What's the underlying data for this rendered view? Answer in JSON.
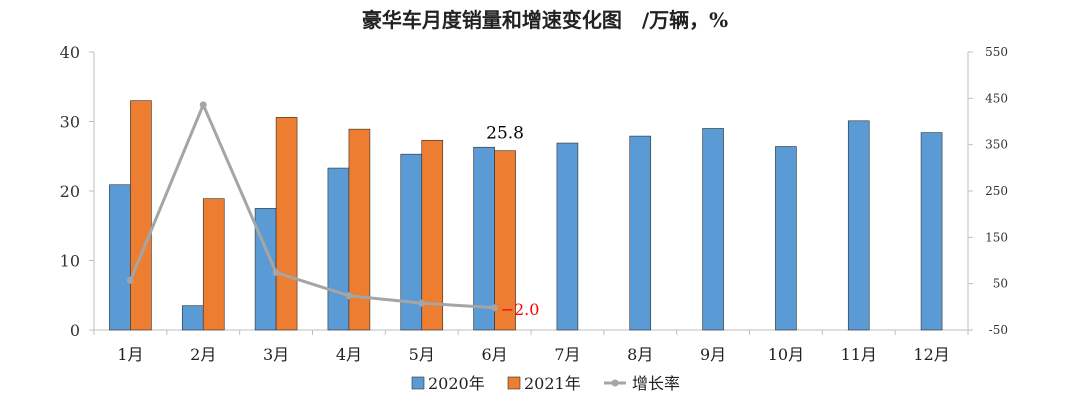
{
  "chart_data": {
    "type": "bar",
    "title": "豪华车月度销量和增速变化图　/万辆，%",
    "categories": [
      "1月",
      "2月",
      "3月",
      "4月",
      "5月",
      "6月",
      "7月",
      "8月",
      "9月",
      "10月",
      "11月",
      "12月"
    ],
    "series": [
      {
        "name": "2020年",
        "type": "bar",
        "axis": "left",
        "color": "#5B9BD5",
        "values": [
          20.9,
          3.5,
          17.5,
          23.3,
          25.3,
          26.3,
          26.9,
          27.9,
          29.0,
          26.4,
          30.1,
          28.4
        ]
      },
      {
        "name": "2021年",
        "type": "bar",
        "axis": "left",
        "color": "#ED7D31",
        "values": [
          33.0,
          18.9,
          30.6,
          28.9,
          27.3,
          25.8,
          null,
          null,
          null,
          null,
          null,
          null
        ]
      },
      {
        "name": "增长率",
        "type": "line",
        "axis": "right",
        "color": "#A5A5A5",
        "values": [
          57.0,
          436.0,
          74.0,
          24.0,
          8.0,
          -2.0,
          null,
          null,
          null,
          null,
          null,
          null
        ]
      }
    ],
    "y_left": {
      "min": 0,
      "max": 40,
      "ticks": [
        0,
        10,
        20,
        30,
        40
      ]
    },
    "y_right": {
      "min": -50,
      "max": 550,
      "ticks": [
        -50,
        50,
        150,
        250,
        350,
        450,
        550
      ]
    },
    "annotations": [
      {
        "text": "25.8",
        "series": 1,
        "index": 5,
        "color": "#000000"
      },
      {
        "text": "−2.0",
        "series": 2,
        "index": 5,
        "color": "#FF0000"
      }
    ],
    "legend_position": "bottom",
    "grid": false
  }
}
